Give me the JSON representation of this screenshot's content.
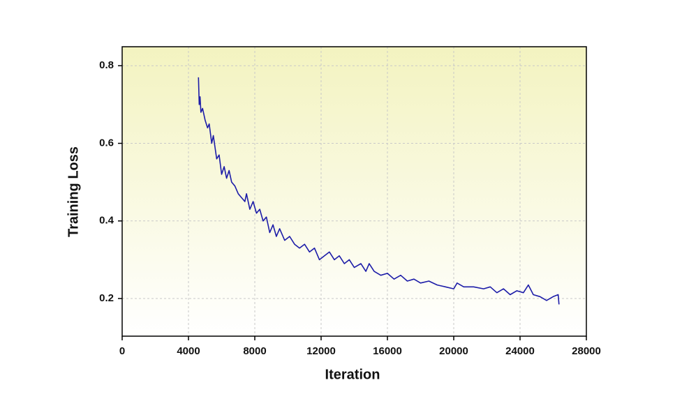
{
  "chart_data": {
    "type": "line",
    "x_label": "Iteration",
    "y_label": "Training Loss",
    "series": [
      {
        "color": "#1c1ca8",
        "x": [
          4600,
          4650,
          4700,
          4750,
          4850,
          5000,
          5150,
          5250,
          5400,
          5500,
          5700,
          5850,
          6000,
          6150,
          6300,
          6450,
          6600,
          6800,
          7000,
          7200,
          7400,
          7500,
          7700,
          7900,
          8100,
          8300,
          8500,
          8700,
          8900,
          9100,
          9300,
          9500,
          9800,
          10100,
          10400,
          10700,
          11000,
          11300,
          11600,
          11900,
          12200,
          12500,
          12800,
          13100,
          13400,
          13700,
          14000,
          14400,
          14700,
          14900,
          15200,
          15600,
          16000,
          16400,
          16800,
          17200,
          17600,
          18000,
          18500,
          19000,
          19500,
          20000,
          20200,
          20600,
          21200,
          21800,
          22200,
          22600,
          23000,
          23400,
          23800,
          24200,
          24500,
          24800,
          25200,
          25600,
          26000,
          26300,
          26350
        ],
        "values": [
          0.77,
          0.7,
          0.72,
          0.68,
          0.69,
          0.66,
          0.64,
          0.65,
          0.6,
          0.62,
          0.56,
          0.57,
          0.52,
          0.54,
          0.51,
          0.53,
          0.5,
          0.49,
          0.47,
          0.46,
          0.45,
          0.47,
          0.43,
          0.45,
          0.42,
          0.43,
          0.4,
          0.41,
          0.37,
          0.39,
          0.36,
          0.38,
          0.35,
          0.36,
          0.34,
          0.33,
          0.34,
          0.32,
          0.33,
          0.3,
          0.31,
          0.32,
          0.3,
          0.31,
          0.29,
          0.3,
          0.28,
          0.29,
          0.27,
          0.29,
          0.27,
          0.26,
          0.265,
          0.25,
          0.26,
          0.245,
          0.25,
          0.24,
          0.245,
          0.235,
          0.23,
          0.225,
          0.24,
          0.23,
          0.23,
          0.225,
          0.23,
          0.215,
          0.225,
          0.21,
          0.22,
          0.215,
          0.235,
          0.21,
          0.205,
          0.195,
          0.205,
          0.21,
          0.185
        ]
      }
    ],
    "xlim": [
      0,
      28000
    ],
    "xticks": [
      0,
      4000,
      8000,
      12000,
      16000,
      20000,
      24000,
      28000
    ],
    "ylim": [
      0.103,
      0.849
    ],
    "yticks": [
      0.2,
      0.4,
      0.6,
      0.8
    ],
    "grid": true
  }
}
